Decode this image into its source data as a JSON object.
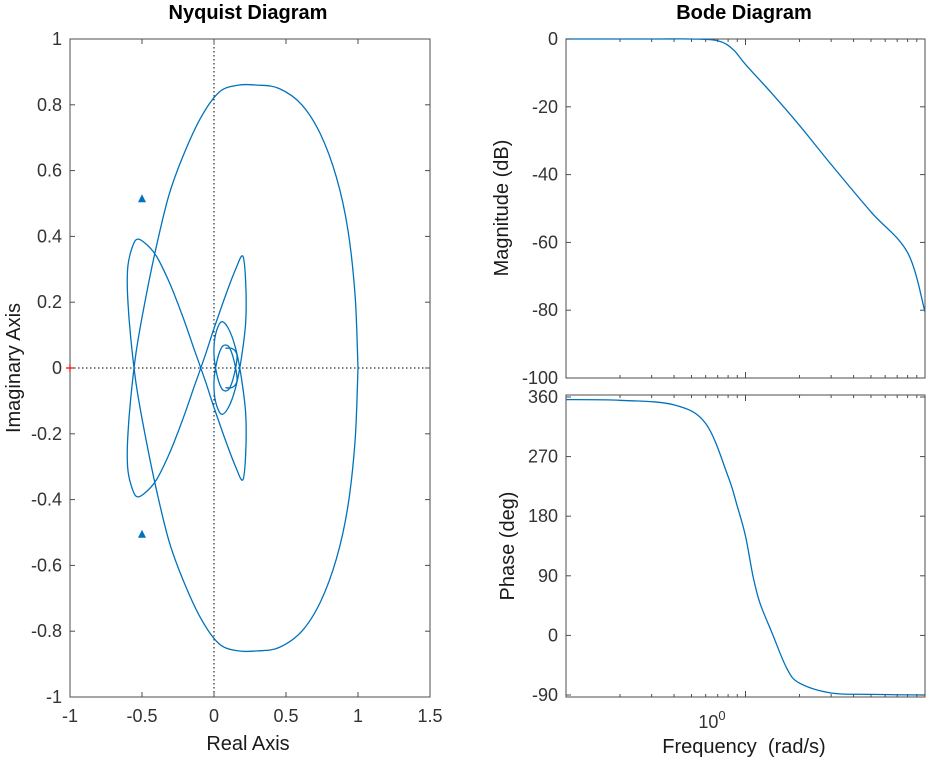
{
  "chart_data": [
    {
      "type": "line",
      "title": "Nyquist Diagram",
      "xlabel": "Real Axis",
      "ylabel": "Imaginary Axis",
      "xlim": [
        -1,
        1.5
      ],
      "ylim": [
        -1,
        1
      ],
      "xticks": [
        "-1",
        "-0.5",
        "0",
        "0.5",
        "1",
        "1.5"
      ],
      "yticks": [
        "-1",
        "-0.8",
        "-0.6",
        "-0.4",
        "-0.2",
        "0",
        "0.2",
        "0.4",
        "0.6",
        "0.8",
        "1"
      ],
      "critical_point": [
        -1,
        0
      ],
      "series": [
        {
          "x": [
            1,
            0.98,
            0.93,
            0.85,
            0.74,
            0.61,
            0.45,
            0.3,
            0.17,
            0.04,
            -0.08,
            -0.2,
            -0.31,
            -0.4,
            -0.48,
            -0.54,
            -0.58,
            -0.6,
            -0.6,
            -0.58,
            -0.54,
            -0.48,
            -0.4,
            -0.31,
            -0.22,
            -0.14,
            -0.06,
            0.0,
            0.08,
            0.15,
            0.2,
            0.22,
            0.22,
            0.19,
            0.15,
            0.1,
            0.05,
            0.01,
            0.0,
            0.02,
            0.05,
            0.08,
            0.11,
            0.14,
            0.16,
            0.15,
            0.12,
            0.08
          ],
          "y": [
            0,
            0.22,
            0.42,
            0.58,
            0.71,
            0.8,
            0.85,
            0.86,
            0.86,
            0.84,
            0.77,
            0.66,
            0.53,
            0.37,
            0.2,
            0.05,
            -0.1,
            -0.22,
            -0.3,
            -0.35,
            -0.39,
            -0.38,
            -0.34,
            -0.26,
            -0.16,
            -0.06,
            0.04,
            0.12,
            0.22,
            0.3,
            0.34,
            0.26,
            0.14,
            0.03,
            -0.06,
            -0.12,
            -0.14,
            -0.1,
            -0.04,
            0.02,
            0.06,
            0.07,
            0.06,
            0.02,
            -0.03,
            -0.05,
            -0.06,
            -0.06
          ]
        }
      ],
      "arrows": [
        [
          -0.5,
          0.51
        ],
        [
          -0.5,
          -0.51
        ]
      ]
    },
    {
      "type": "line",
      "title": "Bode Diagram",
      "xlabel": "Frequency  (rad/s)",
      "xscale": "log",
      "xtick_base": "10",
      "xtick_exp": "0",
      "panels": [
        {
          "ylabel": "Magnitude (dB)",
          "ylim": [
            -100,
            0
          ],
          "yticks": [
            "0",
            "-20",
            "-40",
            "-60",
            "-80",
            "-100"
          ],
          "x": [
            0.1,
            0.3,
            0.5,
            0.7,
            0.85,
            1,
            1.4,
            2,
            3,
            5,
            8,
            10
          ],
          "y": [
            0,
            0,
            0,
            -0.5,
            -3,
            -7.5,
            -16,
            -25.5,
            -37,
            -51,
            -63,
            -80.5
          ]
        },
        {
          "ylabel": "Phase (deg)",
          "ylim": [
            -93,
            363
          ],
          "yticks": [
            "360",
            "270",
            "180",
            "90",
            "0",
            "-90"
          ],
          "x": [
            0.1,
            0.2,
            0.4,
            0.6,
            0.8,
            0.9,
            1,
            1.1,
            1.2,
            1.4,
            1.7,
            2,
            3,
            5,
            10
          ],
          "y": [
            356,
            355,
            348,
            320,
            240,
            195,
            150,
            90,
            50,
            5,
            -50,
            -72,
            -87,
            -89,
            -90
          ]
        }
      ]
    }
  ]
}
